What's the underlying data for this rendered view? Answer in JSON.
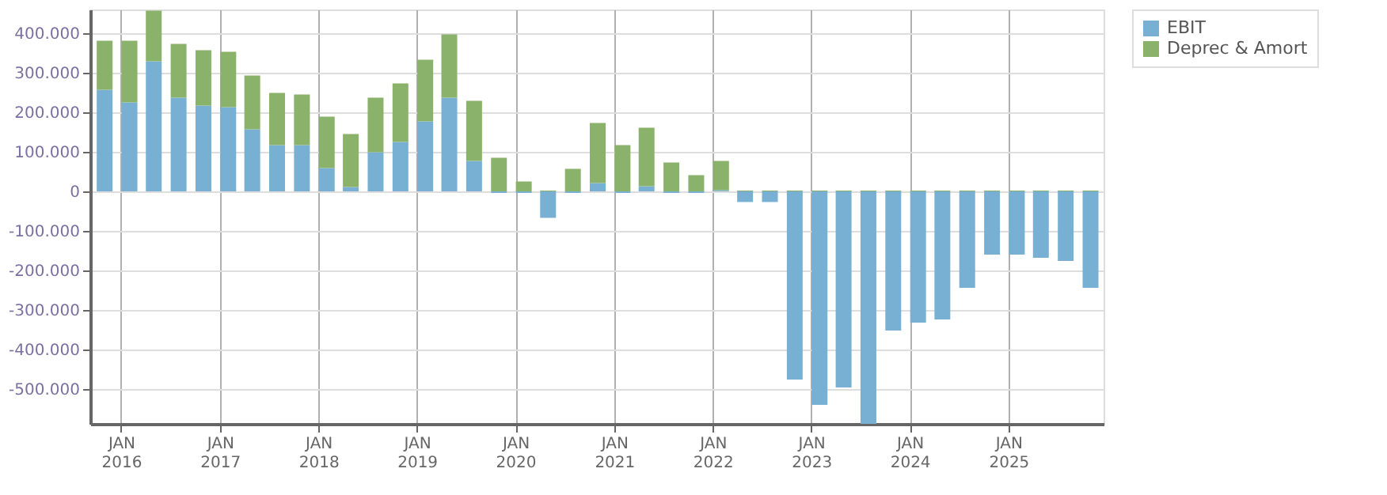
{
  "chart_data": {
    "type": "bar",
    "stacked": true,
    "x": [
      "2015-11",
      "2016-02",
      "2016-05",
      "2016-08",
      "2016-11",
      "2017-02",
      "2017-05",
      "2017-08",
      "2017-11",
      "2018-02",
      "2018-05",
      "2018-08",
      "2018-11",
      "2019-02",
      "2019-05",
      "2019-08",
      "2019-11",
      "2020-02",
      "2020-05",
      "2020-08",
      "2020-11",
      "2021-02",
      "2021-05",
      "2021-08",
      "2021-11",
      "2022-02",
      "2022-05",
      "2022-08",
      "2022-11",
      "2023-02",
      "2023-05",
      "2023-08",
      "2023-11",
      "2024-02",
      "2024-05",
      "2024-08",
      "2024-11",
      "2025-02",
      "2025-05",
      "2025-08",
      "2025-11"
    ],
    "series": [
      {
        "name": "EBIT",
        "color": "#78b0d3",
        "values": [
          257000,
          225000,
          329000,
          237000,
          217000,
          213000,
          157000,
          117000,
          117000,
          59000,
          11000,
          99000,
          125000,
          177000,
          237000,
          77000,
          -4000,
          -4000,
          -67000,
          -4000,
          21000,
          -4000,
          13000,
          -4000,
          -4000,
          3000,
          -27000,
          -27000,
          -476000,
          -540000,
          -496000,
          -588000,
          -352000,
          -332000,
          -324000,
          -244000,
          -160000,
          -160000,
          -168000,
          -176000,
          -244000
        ]
      },
      {
        "name": "Deprec & Amort",
        "color": "#8ab26b",
        "values": [
          124000,
          156000,
          128000,
          136000,
          140000,
          140000,
          136000,
          132000,
          128000,
          130000,
          134000,
          138000,
          148000,
          156000,
          160000,
          152000,
          85000,
          25000,
          2000,
          57000,
          152000,
          117000,
          148000,
          73000,
          41000,
          74000,
          2000,
          2000,
          2000,
          2000,
          2000,
          2000,
          2000,
          2000,
          2000,
          2000,
          2000,
          2000,
          2000,
          2000,
          2000
        ]
      }
    ],
    "ylim": [
      -588000,
      460000
    ],
    "yticks": [
      {
        "value": -500000,
        "label": "-500.000"
      },
      {
        "value": -400000,
        "label": "-400.000"
      },
      {
        "value": -300000,
        "label": "-300.000"
      },
      {
        "value": -200000,
        "label": "-200.000"
      },
      {
        "value": -100000,
        "label": "-100.000"
      },
      0,
      {
        "value": 100000,
        "label": "100.000"
      },
      {
        "value": 200000,
        "label": "200.000"
      },
      {
        "value": 300000,
        "label": "300.000"
      },
      {
        "value": 400000,
        "label": "400.000"
      }
    ],
    "xlim": [
      "2015-10-08",
      "2025-11-20"
    ],
    "xticks": [
      {
        "value": "2016-01",
        "label": "JAN 2016"
      },
      {
        "value": "2017-01",
        "label": "JAN 2017"
      },
      {
        "value": "2018-01",
        "label": "JAN 2018"
      },
      {
        "value": "2019-01",
        "label": "JAN 2019"
      },
      {
        "value": "2020-01",
        "label": "JAN 2020"
      },
      {
        "value": "2021-01",
        "label": "JAN 2021"
      },
      {
        "value": "2022-01",
        "label": "JAN 2022"
      },
      {
        "value": "2023-01",
        "label": "JAN 2023"
      },
      {
        "value": "2024-01",
        "label": "JAN 2024"
      },
      {
        "value": "2025-01",
        "label": "JAN 2025"
      }
    ],
    "grid": true,
    "legend": "top right"
  }
}
